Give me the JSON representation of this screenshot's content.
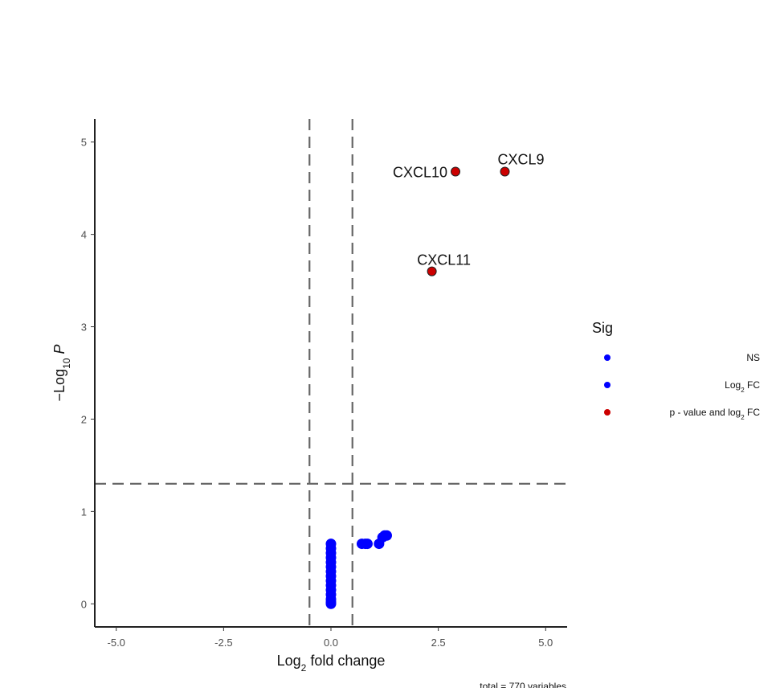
{
  "chart_data": {
    "type": "scatter",
    "title": "",
    "xlabel": "Log2 fold change",
    "ylabel": "-Log10 P",
    "xlim": [
      -5.5,
      5.5
    ],
    "ylim": [
      -0.25,
      5.25
    ],
    "xticks": [
      -5.0,
      -2.5,
      0.0,
      2.5,
      5.0
    ],
    "xtick_labels": [
      "-5.0",
      "-2.5",
      "0.0",
      "2.5",
      "5.0"
    ],
    "yticks": [
      0,
      1,
      2,
      3,
      4,
      5
    ],
    "ytick_labels": [
      "0",
      "1",
      "2",
      "3",
      "4",
      "5"
    ],
    "grid": false,
    "cutoff_lines": {
      "vertical_x": [
        -0.5,
        0.5
      ],
      "horizontal_y": 1.3,
      "style": "dashed",
      "color": "#666666"
    },
    "legend": {
      "title": "Sig",
      "placement": "right",
      "entries": [
        {
          "label": "NS",
          "color": "#0000ff"
        },
        {
          "label": "Log2 FC",
          "color": "#0000ff"
        },
        {
          "label": "p - value and log2 FC",
          "color": "#cc0000"
        }
      ]
    },
    "caption": "total = 770 variables",
    "series": [
      {
        "name": "Log2 FC",
        "color": "#0000ff",
        "points": [
          {
            "x": 0.0,
            "y": 0.65
          },
          {
            "x": 0.0,
            "y": 0.6
          },
          {
            "x": 0.0,
            "y": 0.55
          },
          {
            "x": 0.0,
            "y": 0.5
          },
          {
            "x": 0.0,
            "y": 0.45
          },
          {
            "x": 0.0,
            "y": 0.4
          },
          {
            "x": 0.0,
            "y": 0.35
          },
          {
            "x": 0.0,
            "y": 0.3
          },
          {
            "x": 0.0,
            "y": 0.25
          },
          {
            "x": 0.0,
            "y": 0.2
          },
          {
            "x": 0.0,
            "y": 0.15
          },
          {
            "x": 0.0,
            "y": 0.1
          },
          {
            "x": 0.0,
            "y": 0.05
          },
          {
            "x": 0.0,
            "y": 0.02
          },
          {
            "x": 0.0,
            "y": 0.0
          },
          {
            "x": 0.72,
            "y": 0.65
          },
          {
            "x": 0.8,
            "y": 0.65
          },
          {
            "x": 0.85,
            "y": 0.65
          },
          {
            "x": 1.12,
            "y": 0.65
          },
          {
            "x": 1.2,
            "y": 0.72
          },
          {
            "x": 1.25,
            "y": 0.74
          },
          {
            "x": 1.3,
            "y": 0.74
          }
        ]
      },
      {
        "name": "p - value and log2 FC",
        "color": "#cc0000",
        "points": [
          {
            "x": 2.9,
            "y": 4.68,
            "label": "CXCL10"
          },
          {
            "x": 4.05,
            "y": 4.68,
            "label": "CXCL9"
          },
          {
            "x": 2.35,
            "y": 3.6,
            "label": "CXCL11"
          }
        ]
      }
    ],
    "annotations": [
      {
        "text": "CXCL10",
        "x": 2.9,
        "y": 4.68,
        "anchor": "left"
      },
      {
        "text": "CXCL9",
        "x": 4.05,
        "y": 4.68,
        "anchor": "above"
      },
      {
        "text": "CXCL11",
        "x": 2.35,
        "y": 3.6,
        "anchor": "above"
      }
    ]
  }
}
